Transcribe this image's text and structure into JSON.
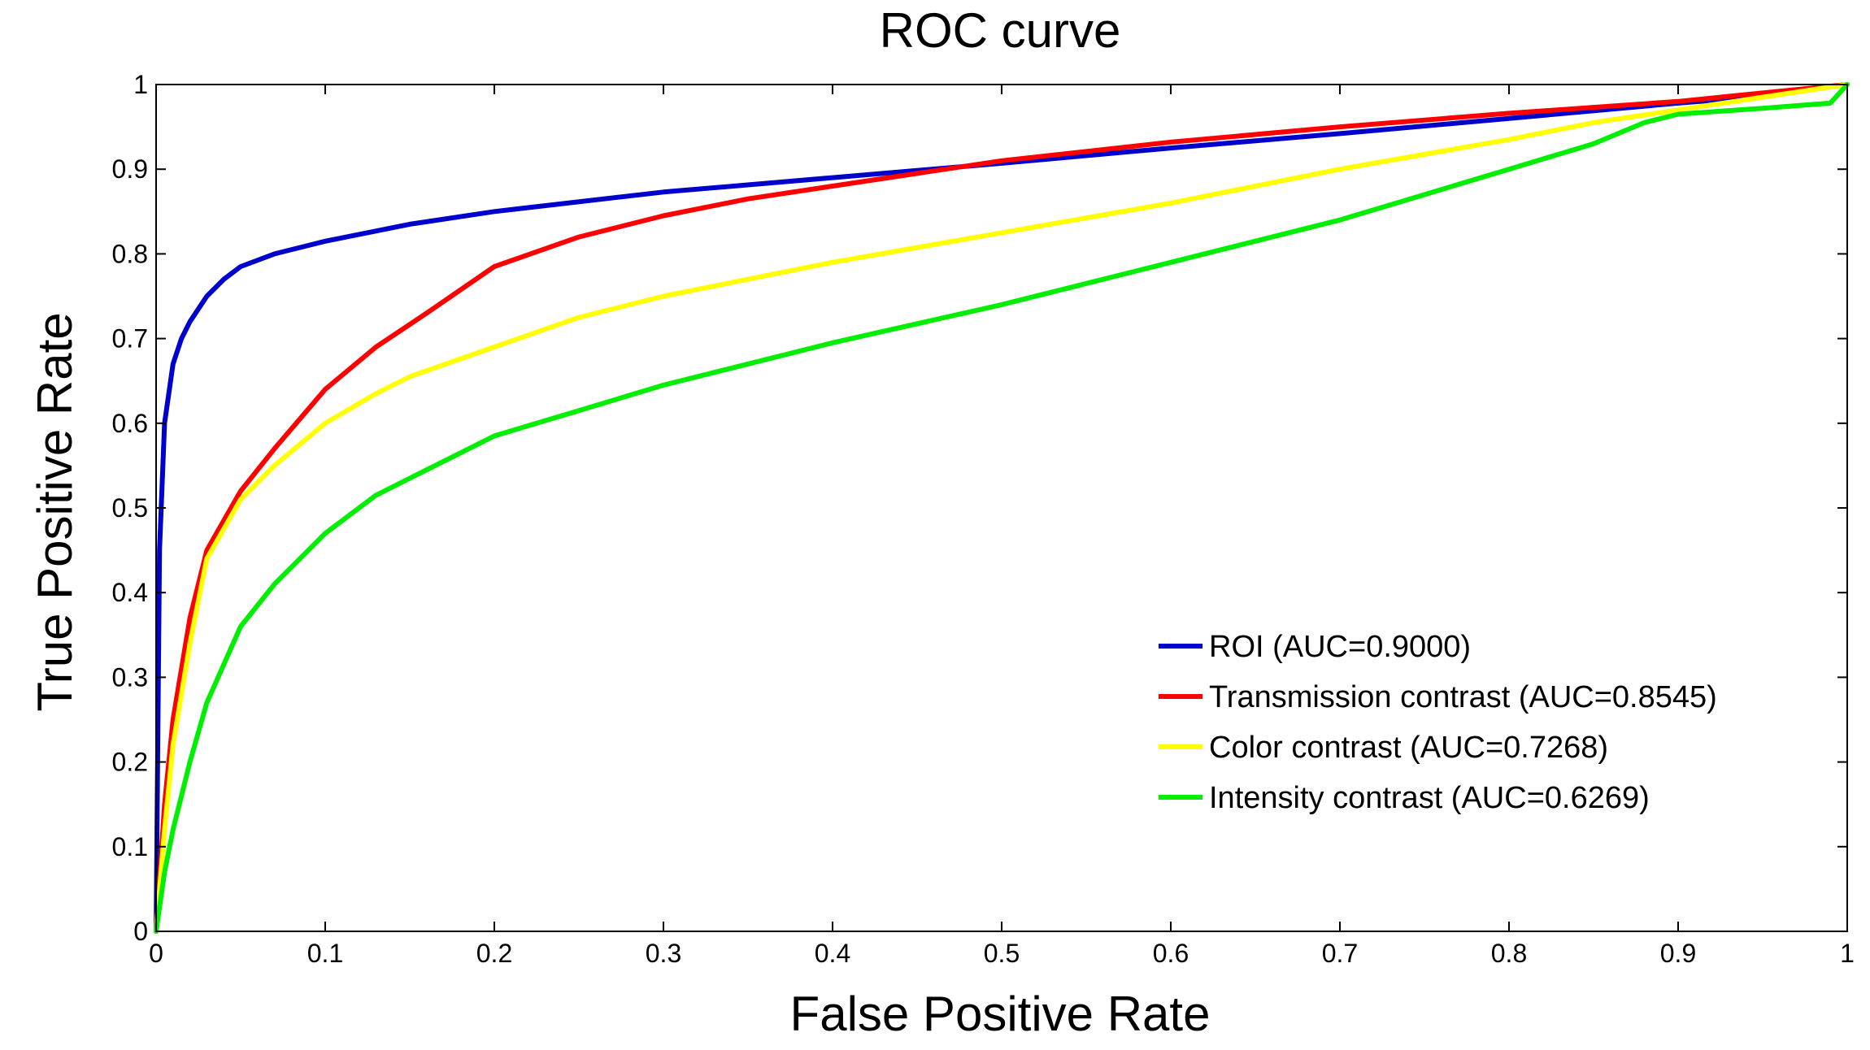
{
  "chart_data": {
    "type": "line",
    "title": "ROC curve",
    "xlabel": "False Positive Rate",
    "ylabel": "True Positive Rate",
    "xlim": [
      0,
      1
    ],
    "ylim": [
      0,
      1
    ],
    "xticks": [
      0,
      0.1,
      0.2,
      0.3,
      0.4,
      0.5,
      0.6,
      0.7,
      0.8,
      0.9,
      1
    ],
    "yticks": [
      0,
      0.1,
      0.2,
      0.3,
      0.4,
      0.5,
      0.6,
      0.7,
      0.8,
      0.9,
      1
    ],
    "xtick_labels": [
      "0",
      "0.1",
      "0.2",
      "0.3",
      "0.4",
      "0.5",
      "0.6",
      "0.7",
      "0.8",
      "0.9",
      "1"
    ],
    "ytick_labels": [
      "0",
      "0.1",
      "0.2",
      "0.3",
      "0.4",
      "0.5",
      "0.6",
      "0.7",
      "0.8",
      "0.9",
      "1"
    ],
    "grid": false,
    "legend_position": "lower-right",
    "series": [
      {
        "name": "ROI (AUC=0.9000)",
        "color": "#0000cc",
        "x": [
          0,
          0.002,
          0.005,
          0.01,
          0.015,
          0.02,
          0.03,
          0.04,
          0.05,
          0.07,
          0.1,
          0.15,
          0.2,
          0.3,
          0.4,
          0.5,
          0.6,
          0.7,
          0.8,
          0.9,
          0.95,
          1.0
        ],
        "y": [
          0,
          0.45,
          0.6,
          0.67,
          0.7,
          0.72,
          0.75,
          0.77,
          0.785,
          0.8,
          0.815,
          0.835,
          0.85,
          0.873,
          0.89,
          0.907,
          0.925,
          0.942,
          0.96,
          0.978,
          0.986,
          1.0
        ]
      },
      {
        "name": "Transmission contrast (AUC=0.8545)",
        "color": "#ff0000",
        "x": [
          0,
          0.005,
          0.01,
          0.02,
          0.03,
          0.05,
          0.07,
          0.1,
          0.13,
          0.16,
          0.2,
          0.25,
          0.3,
          0.35,
          0.4,
          0.45,
          0.5,
          0.6,
          0.7,
          0.8,
          0.9,
          1.0
        ],
        "y": [
          0,
          0.15,
          0.25,
          0.37,
          0.45,
          0.52,
          0.57,
          0.64,
          0.69,
          0.73,
          0.785,
          0.82,
          0.845,
          0.865,
          0.88,
          0.895,
          0.91,
          0.932,
          0.95,
          0.966,
          0.98,
          1.0
        ]
      },
      {
        "name": "Color contrast (AUC=0.7268)",
        "color": "#ffff00",
        "x": [
          0,
          0.005,
          0.01,
          0.02,
          0.03,
          0.05,
          0.07,
          0.1,
          0.13,
          0.15,
          0.2,
          0.25,
          0.3,
          0.4,
          0.5,
          0.6,
          0.7,
          0.8,
          0.85,
          0.9,
          0.95,
          1.0
        ],
        "y": [
          0,
          0.12,
          0.22,
          0.34,
          0.44,
          0.51,
          0.55,
          0.6,
          0.635,
          0.655,
          0.69,
          0.725,
          0.75,
          0.79,
          0.825,
          0.86,
          0.9,
          0.935,
          0.955,
          0.97,
          0.985,
          1.0
        ]
      },
      {
        "name": "Intensity contrast (AUC=0.6269)",
        "color": "#00ee00",
        "x": [
          0,
          0.005,
          0.01,
          0.02,
          0.03,
          0.05,
          0.07,
          0.1,
          0.13,
          0.15,
          0.18,
          0.2,
          0.25,
          0.3,
          0.4,
          0.5,
          0.6,
          0.7,
          0.75,
          0.8,
          0.85,
          0.88,
          0.9,
          0.95,
          0.99,
          1.0
        ],
        "y": [
          0,
          0.07,
          0.12,
          0.2,
          0.27,
          0.36,
          0.41,
          0.47,
          0.515,
          0.535,
          0.565,
          0.585,
          0.615,
          0.645,
          0.695,
          0.74,
          0.79,
          0.84,
          0.87,
          0.9,
          0.93,
          0.955,
          0.965,
          0.972,
          0.978,
          1.0
        ]
      }
    ]
  }
}
